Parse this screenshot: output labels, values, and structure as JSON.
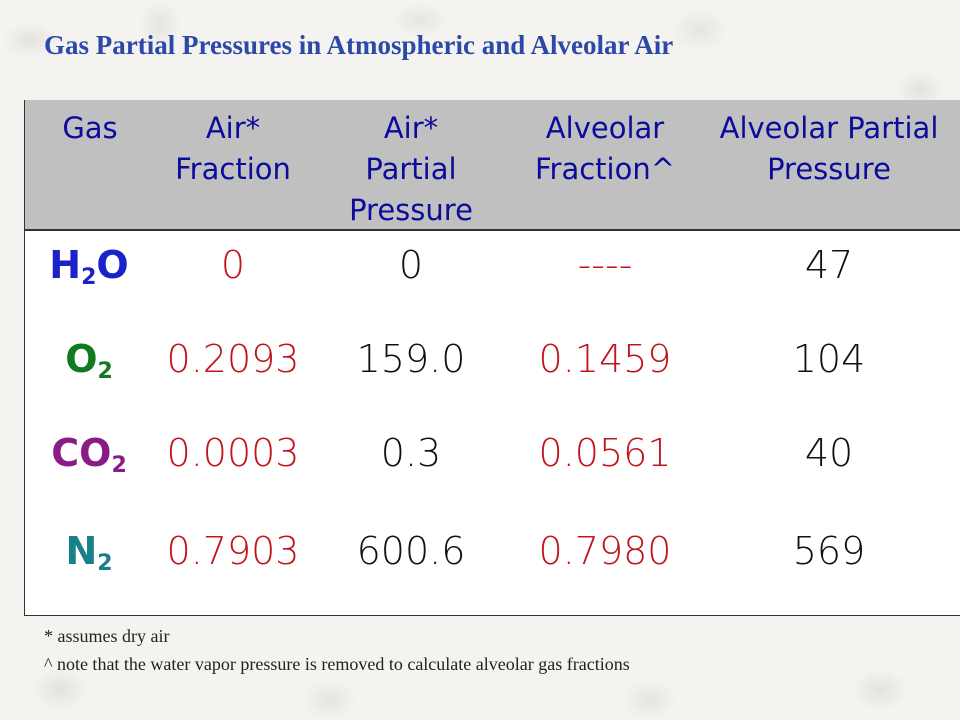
{
  "title": "Gas Partial Pressures in Atmospheric and Alveolar Air",
  "table": {
    "headers": [
      [
        "Gas"
      ],
      [
        "Air*",
        "Fraction"
      ],
      [
        "Air*",
        "Partial",
        "Pressure"
      ],
      [
        "Alveolar",
        "Fraction^"
      ],
      [
        "Alveolar Partial",
        "Pressure"
      ]
    ],
    "rows": [
      {
        "gas": {
          "base": "H",
          "sub": "2",
          "tail": "O",
          "color": "#1a22c8"
        },
        "air_fraction": "0",
        "air_partial": "0",
        "alveolar_fraction": "----",
        "alveolar_partial": "47"
      },
      {
        "gas": {
          "base": "O",
          "sub": "2",
          "tail": "",
          "color": "#0f7a1e"
        },
        "air_fraction": "0.2093",
        "air_partial": "159.0",
        "alveolar_fraction": "0.1459",
        "alveolar_partial": "104"
      },
      {
        "gas": {
          "base": "CO",
          "sub": "2",
          "tail": "",
          "color": "#8a1a86"
        },
        "air_fraction": "0.0003",
        "air_partial": "0.3",
        "alveolar_fraction": "0.0561",
        "alveolar_partial": "40"
      },
      {
        "gas": {
          "base": "N",
          "sub": "2",
          "tail": "",
          "color": "#18808a"
        },
        "air_fraction": "0.7903",
        "air_partial": "600.6",
        "alveolar_fraction": "0.7980",
        "alveolar_partial": "569"
      }
    ]
  },
  "notes": [
    "* assumes dry air",
    "^ note that the water vapor pressure is removed to calculate alveolar gas fractions"
  ],
  "colors": {
    "title": "#2d49a8",
    "header_bg": "#c0c0c0",
    "header_text": "#0b0b9c",
    "fraction_red": "#c0151c"
  }
}
